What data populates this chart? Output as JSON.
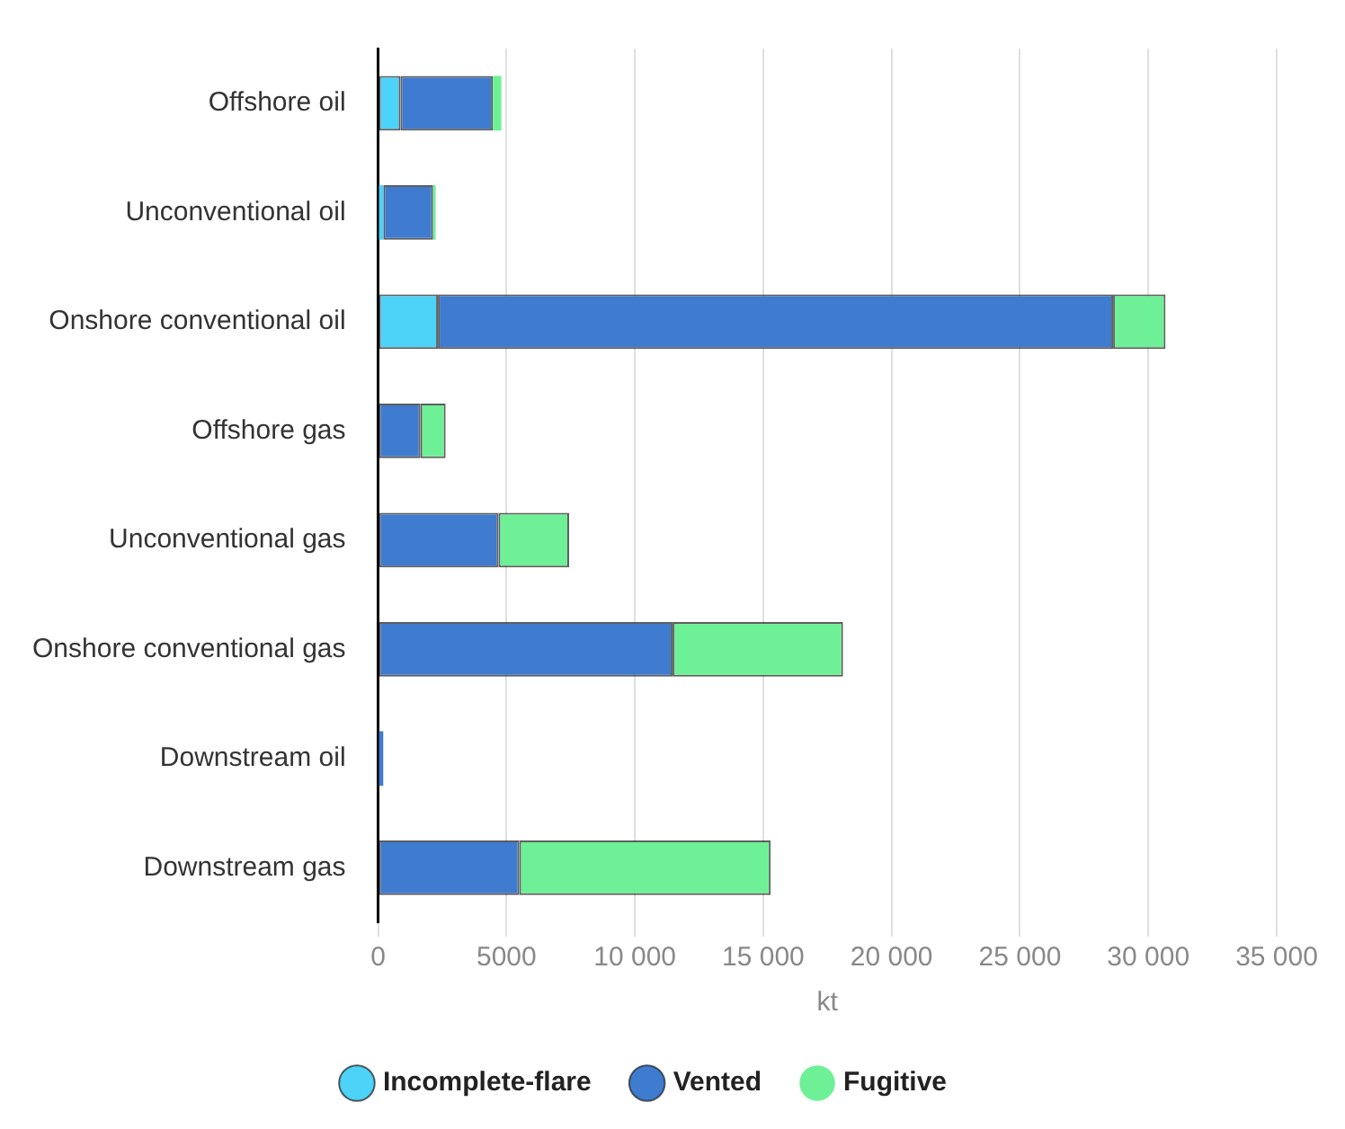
{
  "chart_data": {
    "type": "bar",
    "orientation": "horizontal",
    "stacked": true,
    "xlabel": "kt",
    "categories": [
      "Offshore oil",
      "Unconventional oil",
      "Onshore conventional oil",
      "Offshore gas",
      "Unconventional gas",
      "Onshore conventional gas",
      "Downstream oil",
      "Downstream gas"
    ],
    "series": [
      {
        "name": "Incomplete-flare",
        "color": "#4dd2f8",
        "values": [
          870,
          200,
          2330,
          0,
          0,
          0,
          0,
          0
        ]
      },
      {
        "name": "Vented",
        "color": "#3f7bcf",
        "values": [
          3600,
          1940,
          26300,
          1650,
          4690,
          11470,
          200,
          5500
        ]
      },
      {
        "name": "Fugitive",
        "color": "#6ef097",
        "values": [
          330,
          100,
          2040,
          980,
          2750,
          6640,
          0,
          9790
        ]
      }
    ],
    "xlim": [
      0,
      35000
    ],
    "xticks": [
      0,
      5000,
      {
        "value": 10000,
        "label": "10 000"
      },
      {
        "value": 15000,
        "label": "15 000"
      },
      {
        "value": 20000,
        "label": "20 000"
      },
      {
        "value": 25000,
        "label": "25 000"
      },
      {
        "value": 30000,
        "label": "30 000"
      },
      {
        "value": 35000,
        "label": "35 000"
      }
    ],
    "grid": "x",
    "legend": "bottom"
  }
}
